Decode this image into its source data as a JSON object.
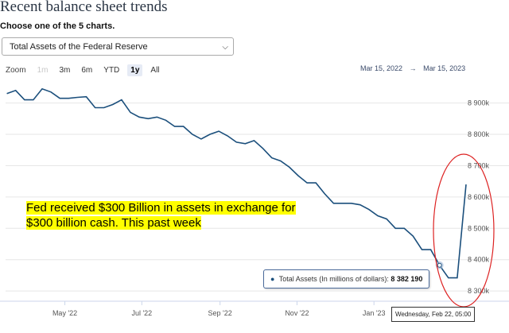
{
  "page": {
    "title": "Recent balance sheet trends",
    "subtitle": "Choose one of the 5 charts."
  },
  "chart_select": {
    "selected": "Total Assets of the Federal Reserve"
  },
  "zoom": {
    "label": "Zoom",
    "buttons": [
      {
        "label": "1m",
        "state": "disabled"
      },
      {
        "label": "3m",
        "state": "normal"
      },
      {
        "label": "6m",
        "state": "normal"
      },
      {
        "label": "YTD",
        "state": "normal"
      },
      {
        "label": "1y",
        "state": "active"
      },
      {
        "label": "All",
        "state": "normal"
      }
    ]
  },
  "range": {
    "from": "Mar 15, 2022",
    "separator": "→",
    "to": "Mar 15, 2023"
  },
  "annotation": {
    "text": "Fed received $300 Billion in assets in exchange for $300 billion cash. This past week"
  },
  "tooltip": {
    "label": "Total Assets (In millions of dollars):",
    "value": "8 382 190"
  },
  "crosshair_date": "Wednesday, Feb 22, 05:00",
  "colors": {
    "line": "#1b4f7c",
    "annotation_highlight": "#ffff00",
    "circle": "#dd2222"
  },
  "chart_data": {
    "type": "line",
    "title": "",
    "xlabel": "",
    "ylabel": "",
    "ylim": [
      8270000,
      8975000
    ],
    "y_ticks": [
      "8 300k",
      "8 400k",
      "8 500k",
      "8 600k",
      "8 700k",
      "8 800k",
      "8 900k"
    ],
    "y_tick_values": [
      8300000,
      8400000,
      8500000,
      8600000,
      8700000,
      8800000,
      8900000
    ],
    "x_ticks": [
      "May '22",
      "Jul '22",
      "Sep '22",
      "Nov '22",
      "Jan '23"
    ],
    "x_tick_values": [
      "2022-05-01",
      "2022-07-01",
      "2022-09-01",
      "2022-11-01",
      "2023-01-01"
    ],
    "grid": true,
    "series": [
      {
        "name": "Total Assets (In millions of dollars)",
        "x": [
          "2022-03-16",
          "2022-03-23",
          "2022-03-30",
          "2022-04-06",
          "2022-04-13",
          "2022-04-20",
          "2022-04-27",
          "2022-05-04",
          "2022-05-11",
          "2022-05-18",
          "2022-05-25",
          "2022-06-01",
          "2022-06-08",
          "2022-06-15",
          "2022-06-22",
          "2022-06-29",
          "2022-07-06",
          "2022-07-13",
          "2022-07-20",
          "2022-07-27",
          "2022-08-03",
          "2022-08-10",
          "2022-08-17",
          "2022-08-24",
          "2022-08-31",
          "2022-09-07",
          "2022-09-14",
          "2022-09-21",
          "2022-09-28",
          "2022-10-05",
          "2022-10-12",
          "2022-10-19",
          "2022-10-26",
          "2022-11-02",
          "2022-11-09",
          "2022-11-16",
          "2022-11-23",
          "2022-11-30",
          "2022-12-07",
          "2022-12-14",
          "2022-12-21",
          "2022-12-28",
          "2023-01-04",
          "2023-01-11",
          "2023-01-18",
          "2023-01-25",
          "2023-02-01",
          "2023-02-08",
          "2023-02-15",
          "2023-02-22",
          "2023-03-01",
          "2023-03-08",
          "2023-03-15"
        ],
        "values": [
          8930000,
          8940000,
          8910000,
          8910000,
          8945000,
          8935000,
          8915000,
          8915000,
          8918000,
          8920000,
          8885000,
          8885000,
          8895000,
          8910000,
          8870000,
          8855000,
          8850000,
          8855000,
          8845000,
          8825000,
          8825000,
          8800000,
          8785000,
          8800000,
          8810000,
          8795000,
          8775000,
          8770000,
          8780000,
          8755000,
          8725000,
          8715000,
          8695000,
          8668000,
          8645000,
          8645000,
          8610000,
          8580000,
          8580000,
          8580000,
          8575000,
          8560000,
          8540000,
          8530000,
          8500000,
          8500000,
          8475000,
          8432000,
          8432000,
          8382190,
          8342000,
          8342000,
          8640000
        ]
      }
    ]
  }
}
